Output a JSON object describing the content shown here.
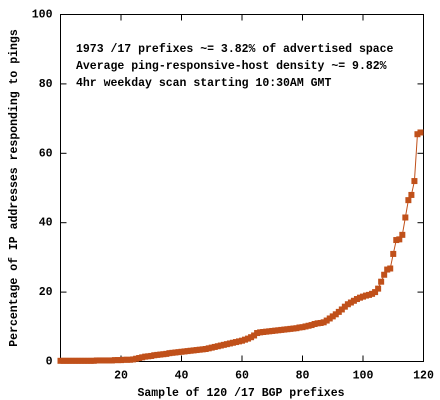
{
  "chart_data": {
    "type": "line",
    "annotations": [
      "1973 /17 prefixes ~= 3.82% of advertised space",
      "Average ping-responsive-host density ~= 9.82%",
      "4hr weekday scan starting 10:30AM GMT"
    ],
    "xlabel": "Sample of 120 /17 BGP prefixes",
    "ylabel": "Percentage of IP addresses responding to pings",
    "x": [
      0,
      1,
      2,
      3,
      4,
      5,
      6,
      7,
      8,
      9,
      10,
      11,
      12,
      13,
      14,
      15,
      16,
      17,
      18,
      19,
      20,
      21,
      22,
      23,
      24,
      25,
      26,
      27,
      28,
      29,
      30,
      31,
      32,
      33,
      34,
      35,
      36,
      37,
      38,
      39,
      40,
      41,
      42,
      43,
      44,
      45,
      46,
      47,
      48,
      49,
      50,
      51,
      52,
      53,
      54,
      55,
      56,
      57,
      58,
      59,
      60,
      61,
      62,
      63,
      64,
      65,
      66,
      67,
      68,
      69,
      70,
      71,
      72,
      73,
      74,
      75,
      76,
      77,
      78,
      79,
      80,
      81,
      82,
      83,
      84,
      85,
      86,
      87,
      88,
      89,
      90,
      91,
      92,
      93,
      94,
      95,
      96,
      97,
      98,
      99,
      100,
      101,
      102,
      103,
      104,
      105,
      106,
      107,
      108,
      109,
      110,
      111,
      112,
      113,
      114,
      115,
      116,
      117,
      118,
      119
    ],
    "series": [
      {
        "color": "#c0501a",
        "values": [
          0.2,
          0.2,
          0.2,
          0.2,
          0.2,
          0.2,
          0.2,
          0.2,
          0.2,
          0.2,
          0.2,
          0.2,
          0.3,
          0.3,
          0.3,
          0.3,
          0.3,
          0.3,
          0.4,
          0.4,
          0.4,
          0.5,
          0.5,
          0.5,
          0.6,
          0.8,
          1.0,
          1.2,
          1.4,
          1.5,
          1.6,
          1.8,
          1.9,
          2.0,
          2.1,
          2.2,
          2.4,
          2.5,
          2.6,
          2.7,
          2.8,
          2.9,
          3.0,
          3.1,
          3.2,
          3.3,
          3.4,
          3.5,
          3.6,
          3.8,
          4.0,
          4.2,
          4.4,
          4.6,
          4.8,
          5.0,
          5.2,
          5.4,
          5.6,
          5.8,
          6.0,
          6.3,
          6.6,
          7.0,
          7.5,
          8.2,
          8.4,
          8.5,
          8.6,
          8.7,
          8.8,
          8.9,
          9.0,
          9.1,
          9.2,
          9.3,
          9.4,
          9.5,
          9.6,
          9.8,
          9.9,
          10.1,
          10.3,
          10.5,
          10.8,
          11.0,
          11.1,
          11.3,
          11.8,
          12.4,
          13.0,
          13.6,
          14.3,
          15.0,
          15.8,
          16.5,
          17.0,
          17.5,
          18.0,
          18.4,
          18.7,
          19.0,
          19.2,
          19.5,
          20.0,
          21.0,
          23.0,
          25.0,
          26.5,
          26.8,
          31.0,
          35.0,
          35.2,
          36.5,
          41.5,
          46.5,
          48.0,
          52.0,
          65.5,
          66.0
        ]
      }
    ],
    "xlim": [
      0,
      120
    ],
    "xticks": [
      20,
      40,
      60,
      80,
      100,
      120
    ],
    "ylim": [
      0,
      100
    ],
    "yticks": [
      0,
      20,
      40,
      60,
      80,
      100
    ]
  }
}
